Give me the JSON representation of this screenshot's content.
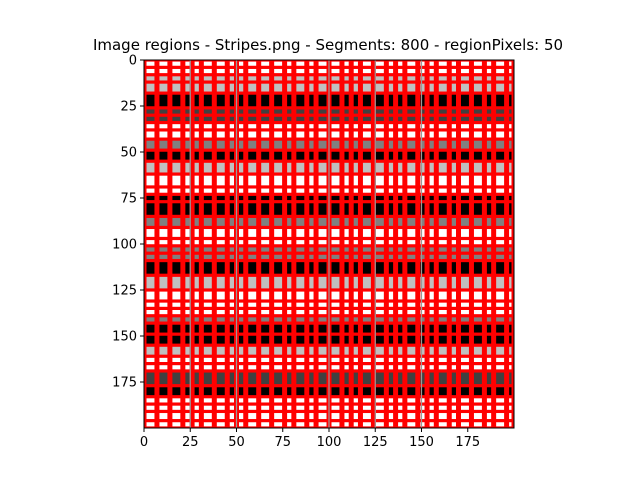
{
  "chart_data": {
    "type": "heatmap",
    "title": "Image regions - Stripes.png - Segments: 800 - regionPixels: 50",
    "xlabel": "",
    "ylabel": "",
    "image_size": [
      200,
      200
    ],
    "xlim": [
      0,
      200
    ],
    "ylim": [
      200,
      0
    ],
    "xticks": [
      0,
      25,
      50,
      75,
      100,
      125,
      150,
      175
    ],
    "yticks": [
      0,
      25,
      50,
      75,
      100,
      125,
      150,
      175
    ],
    "xtick_labels": [
      "0",
      "25",
      "50",
      "75",
      "100",
      "125",
      "150",
      "175"
    ],
    "ytick_labels": [
      "0",
      "25",
      "50",
      "75",
      "100",
      "125",
      "150",
      "175"
    ],
    "boundary_color": "#ff0000",
    "region_grid_x": [
      0,
      7,
      14,
      21,
      26,
      31,
      38,
      45,
      50,
      55,
      62,
      69,
      76,
      81,
      88,
      93,
      100,
      107,
      112,
      117,
      124,
      131,
      136,
      141,
      148,
      153,
      158,
      165,
      170,
      177,
      184,
      189,
      196,
      200
    ],
    "region_grid_y": [
      0,
      4,
      8,
      12,
      18,
      26,
      30,
      34,
      38,
      43,
      49,
      55,
      62,
      69,
      73,
      77,
      85,
      91,
      97,
      101,
      105,
      109,
      117,
      125,
      131,
      135,
      139,
      143,
      149,
      155,
      161,
      165,
      169,
      177,
      183,
      187,
      191,
      196,
      200
    ],
    "band_levels": [
      {
        "y": [
          0,
          8
        ],
        "level": "white"
      },
      {
        "y": [
          8,
          18
        ],
        "level": "lightgray"
      },
      {
        "y": [
          18,
          26
        ],
        "level": "black"
      },
      {
        "y": [
          26,
          34
        ],
        "level": "darkgray"
      },
      {
        "y": [
          34,
          43
        ],
        "level": "white"
      },
      {
        "y": [
          43,
          49
        ],
        "level": "gray"
      },
      {
        "y": [
          49,
          55
        ],
        "level": "black"
      },
      {
        "y": [
          55,
          62
        ],
        "level": "lightgray"
      },
      {
        "y": [
          62,
          73
        ],
        "level": "white"
      },
      {
        "y": [
          73,
          85
        ],
        "level": "black"
      },
      {
        "y": [
          85,
          91
        ],
        "level": "gray"
      },
      {
        "y": [
          91,
          101
        ],
        "level": "white"
      },
      {
        "y": [
          101,
          109
        ],
        "level": "gray"
      },
      {
        "y": [
          109,
          117
        ],
        "level": "black"
      },
      {
        "y": [
          117,
          125
        ],
        "level": "lightgray"
      },
      {
        "y": [
          125,
          139
        ],
        "level": "white"
      },
      {
        "y": [
          139,
          143
        ],
        "level": "gray"
      },
      {
        "y": [
          143,
          155
        ],
        "level": "black"
      },
      {
        "y": [
          155,
          161
        ],
        "level": "lightgray"
      },
      {
        "y": [
          161,
          169
        ],
        "level": "white"
      },
      {
        "y": [
          169,
          177
        ],
        "level": "darkgray"
      },
      {
        "y": [
          177,
          183
        ],
        "level": "black"
      },
      {
        "y": [
          183,
          200
        ],
        "level": "white"
      }
    ],
    "level_colors": {
      "white": "#ffffff",
      "lightgray": "#c0c0c0",
      "gray": "#808080",
      "darkgray": "#404040",
      "black": "#000000"
    },
    "gray_vertical_lines_x": [
      25,
      50,
      100,
      125,
      150
    ]
  }
}
